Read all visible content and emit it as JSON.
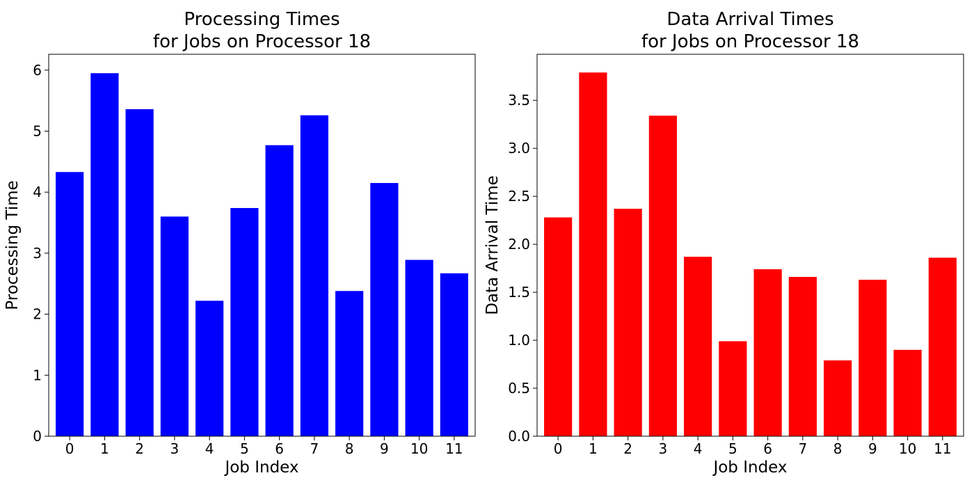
{
  "chart_data": [
    {
      "type": "bar",
      "title": "Processing Times\nfor Jobs on Processor 18",
      "xlabel": "Job Index",
      "ylabel": "Processing Time",
      "categories": [
        "0",
        "1",
        "2",
        "3",
        "4",
        "5",
        "6",
        "7",
        "8",
        "9",
        "10",
        "11"
      ],
      "values": [
        4.33,
        5.95,
        5.36,
        3.6,
        2.22,
        3.74,
        4.77,
        5.26,
        2.38,
        4.15,
        2.89,
        2.67
      ],
      "ylim": [
        0,
        6.26
      ],
      "yticks": [
        0,
        1,
        2,
        3,
        4,
        5,
        6
      ],
      "ytick_labels": [
        "0",
        "1",
        "2",
        "3",
        "4",
        "5",
        "6"
      ],
      "color": "#0000ff",
      "grid": false
    },
    {
      "type": "bar",
      "title": "Data Arrival Times\nfor Jobs on Processor 18",
      "xlabel": "Job Index",
      "ylabel": "Data Arrival Time",
      "categories": [
        "0",
        "1",
        "2",
        "3",
        "4",
        "5",
        "6",
        "7",
        "8",
        "9",
        "10",
        "11"
      ],
      "values": [
        2.28,
        3.79,
        2.37,
        3.34,
        1.87,
        0.99,
        1.74,
        1.66,
        0.79,
        1.63,
        0.9,
        1.86
      ],
      "ylim": [
        0,
        3.98
      ],
      "yticks": [
        0,
        0.5,
        1,
        1.5,
        2,
        2.5,
        3,
        3.5
      ],
      "ytick_labels": [
        "0.0",
        "0.5",
        "1.0",
        "1.5",
        "2.0",
        "2.5",
        "3.0",
        "3.5"
      ],
      "color": "#ff0000",
      "grid": false
    }
  ]
}
